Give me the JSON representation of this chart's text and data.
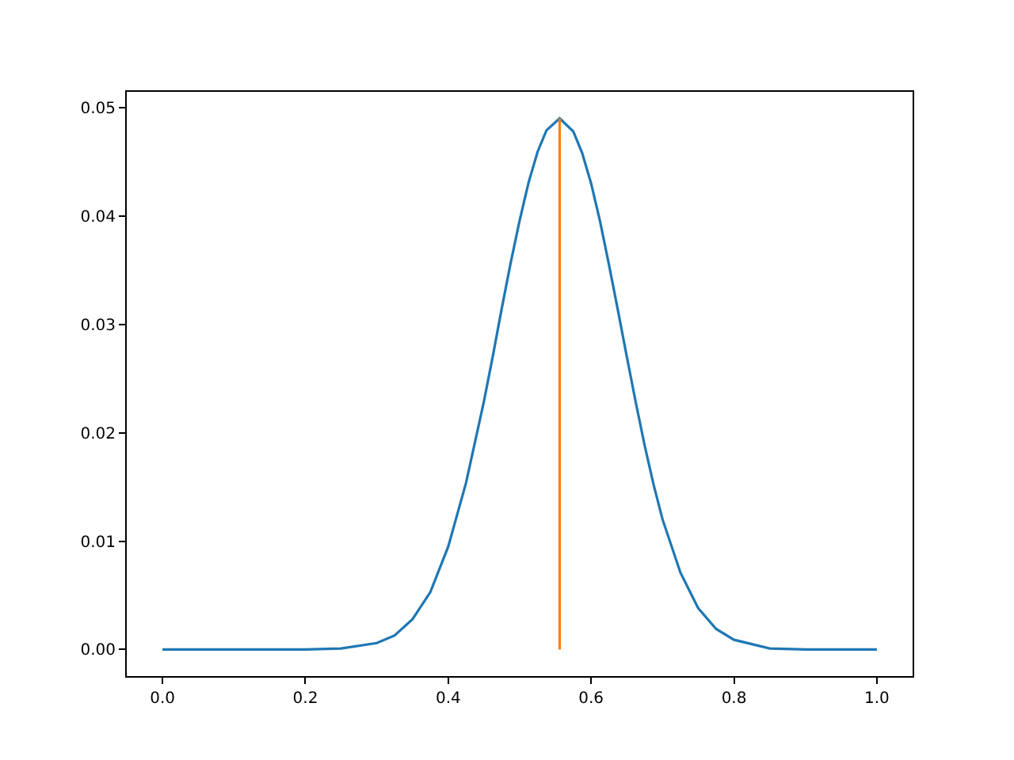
{
  "chart_data": {
    "type": "line",
    "xlim": [
      -0.05,
      1.05
    ],
    "ylim": [
      -0.00245,
      0.05145
    ],
    "xticks": [
      {
        "value": 0,
        "label": "0.0"
      },
      {
        "value": 0.2,
        "label": "0.2"
      },
      {
        "value": 0.4,
        "label": "0.4"
      },
      {
        "value": 0.6,
        "label": "0.6"
      },
      {
        "value": 0.8,
        "label": "0.8"
      },
      {
        "value": 1,
        "label": "1.0"
      }
    ],
    "yticks": [
      {
        "value": 0,
        "label": "0.00"
      },
      {
        "value": 0.01,
        "label": "0.01"
      },
      {
        "value": 0.02,
        "label": "0.02"
      },
      {
        "value": 0.03,
        "label": "0.03"
      },
      {
        "value": 0.04,
        "label": "0.04"
      },
      {
        "value": 0.05,
        "label": "0.05"
      }
    ],
    "marker": "none",
    "line_style": "solid",
    "series": [
      {
        "color": "#1f77b4",
        "x": [
          0,
          0.1,
          0.2,
          0.25,
          0.3,
          0.325,
          0.35,
          0.375,
          0.4,
          0.425,
          0.45,
          0.4625,
          0.475,
          0.4875,
          0.5,
          0.5125,
          0.525,
          0.5375,
          0.556,
          0.575,
          0.5875,
          0.6,
          0.6125,
          0.625,
          0.6375,
          0.65,
          0.6625,
          0.675,
          0.6875,
          0.7,
          0.725,
          0.75,
          0.775,
          0.8,
          0.85,
          0.9,
          1.0
        ],
        "values": [
          0,
          0,
          0,
          0.0001,
          0.0006,
          0.0013,
          0.0028,
          0.0053,
          0.0095,
          0.0154,
          0.0229,
          0.0271,
          0.0315,
          0.0357,
          0.0396,
          0.0431,
          0.0459,
          0.0479,
          0.049,
          0.0478,
          0.0458,
          0.043,
          0.0395,
          0.0355,
          0.0313,
          0.027,
          0.0228,
          0.0188,
          0.0152,
          0.012,
          0.0071,
          0.0038,
          0.0019,
          0.0009,
          0.0001,
          0,
          0
        ]
      },
      {
        "color": "#ff7f0e",
        "x": [
          0.556,
          0.556
        ],
        "values": [
          0,
          0.049
        ]
      }
    ]
  }
}
